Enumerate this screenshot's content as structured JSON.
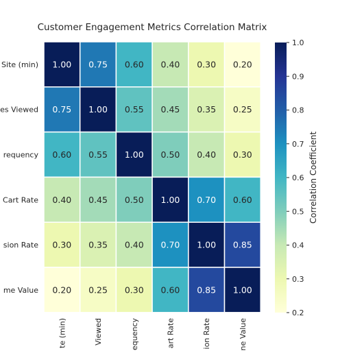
{
  "chart_data": {
    "type": "heatmap",
    "title": "Customer Engagement Metrics Correlation Matrix",
    "row_labels": [
      "Site (min)",
      "es Viewed",
      "requency",
      "Cart Rate",
      "sion Rate",
      "me Value"
    ],
    "col_labels": [
      "te (min)",
      "Viewed",
      "equency",
      "art Rate",
      "ion Rate",
      "ne Value"
    ],
    "values": [
      [
        1.0,
        0.75,
        0.6,
        0.4,
        0.3,
        0.2
      ],
      [
        0.75,
        1.0,
        0.55,
        0.45,
        0.35,
        0.25
      ],
      [
        0.6,
        0.55,
        1.0,
        0.5,
        0.4,
        0.3
      ],
      [
        0.4,
        0.45,
        0.5,
        1.0,
        0.7,
        0.6
      ],
      [
        0.3,
        0.35,
        0.4,
        0.7,
        1.0,
        0.85
      ],
      [
        0.2,
        0.25,
        0.3,
        0.6,
        0.85,
        1.0
      ]
    ],
    "colorbar": {
      "label": "Correlation Coefficient",
      "range": [
        0.2,
        1.0
      ],
      "ticks": [
        "0.2",
        "0.3",
        "0.4",
        "0.5",
        "0.6",
        "0.7",
        "0.8",
        "0.9",
        "1.0"
      ],
      "colormap": "YlGnBu"
    },
    "annotation_format": "2 decimals",
    "grid": false
  }
}
